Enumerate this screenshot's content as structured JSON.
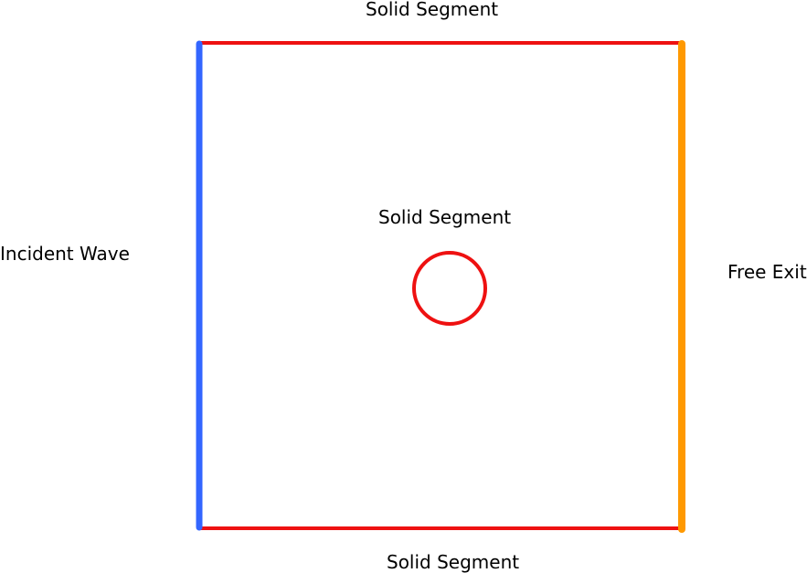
{
  "labels": {
    "top": "Solid Segment",
    "center": "Solid Segment",
    "left": "Incident Wave",
    "right": "Free Exit",
    "bottom": "Solid Segment"
  },
  "colors": {
    "solid": "#ee1111",
    "incident": "#3366ff",
    "exit": "#ff9900"
  }
}
